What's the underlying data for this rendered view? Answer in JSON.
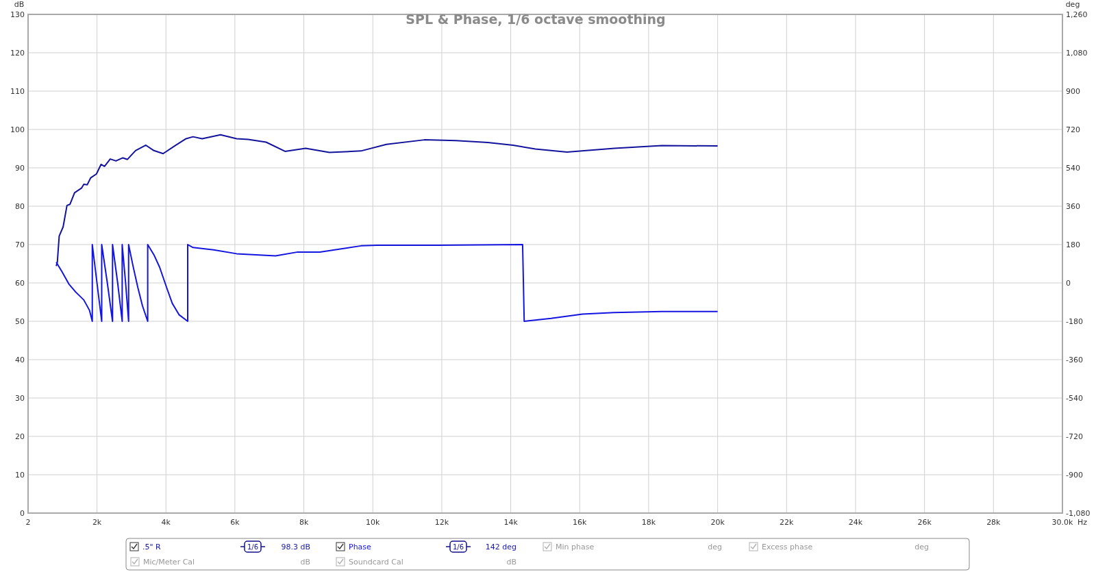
{
  "chart_data": {
    "type": "line",
    "title": "SPL & Phase, 1/6 octave smoothing",
    "xlabel": "Hz",
    "ylabel": "dB",
    "y2label": "deg",
    "xlim": [
      2,
      30000
    ],
    "xticks": [
      2,
      {
        "value": 2000,
        "label": "2k"
      },
      {
        "value": 4000,
        "label": "4k"
      },
      {
        "value": 6000,
        "label": "6k"
      },
      {
        "value": 8000,
        "label": "8k"
      },
      {
        "value": 10000,
        "label": "10k"
      },
      {
        "value": 12000,
        "label": "12k"
      },
      {
        "value": 14000,
        "label": "14k"
      },
      {
        "value": 16000,
        "label": "16k"
      },
      {
        "value": 18000,
        "label": "18k"
      },
      {
        "value": 20000,
        "label": "20k"
      },
      {
        "value": 22000,
        "label": "22k"
      },
      {
        "value": 24000,
        "label": "24k"
      },
      {
        "value": 26000,
        "label": "26k"
      },
      {
        "value": 28000,
        "label": "28k"
      },
      {
        "value": 30000,
        "label": "30.0k"
      }
    ],
    "ylim": [
      0,
      130
    ],
    "yticks": [
      0,
      10,
      20,
      30,
      40,
      50,
      60,
      70,
      80,
      90,
      100,
      110,
      120,
      130
    ],
    "y2lim": [
      -1080,
      1260
    ],
    "y2ticks": [
      {
        "value": -1080,
        "label": "-1,080"
      },
      -900,
      -720,
      -540,
      -360,
      -180,
      0,
      180,
      360,
      540,
      720,
      900,
      {
        "value": 1080,
        "label": "1,080"
      },
      {
        "value": 1260,
        "label": "1,260"
      }
    ],
    "grid": true,
    "legend": "bottom",
    "marker": "none",
    "line_style": "solid",
    "series": [
      {
        "name": ".5\" R",
        "color": "#12129c",
        "x": [
          818,
          850,
          904,
          1018,
          1130,
          1218,
          1350,
          1550,
          1618,
          1718,
          1818,
          1984,
          2118,
          2218,
          2384,
          2550,
          2750,
          2884,
          3118,
          3418,
          3650,
          3918,
          4250,
          4584,
          4784,
          5050,
          5584,
          6050,
          6384,
          6904,
          7454,
          8052,
          8740,
          9658,
          10394,
          11496,
          12414,
          13334,
          14068,
          14712,
          15630,
          17008,
          18384,
          20000
        ],
        "values": [
          64.4,
          65.4,
          72.2,
          74.6,
          80.2,
          80.5,
          83.5,
          84.7,
          85.7,
          85.6,
          87.4,
          88.4,
          90.9,
          90.4,
          92.3,
          91.8,
          92.6,
          92.2,
          94.5,
          95.9,
          94.5,
          93.7,
          95.7,
          97.6,
          98.1,
          97.6,
          98.6,
          97.6,
          97.4,
          96.7,
          94.3,
          95.1,
          94.0,
          94.4,
          96.1,
          97.3,
          97.1,
          96.6,
          95.9,
          94.9,
          94.1,
          95.1,
          95.8,
          95.7
        ]
      },
      {
        "name": "Phase",
        "color": "#1414e0",
        "axis": "y2",
        "x": [
          818,
          984,
          1184,
          1384,
          1618,
          1784,
          1864,
          1864,
          2000,
          2137,
          2137,
          2300,
          2451,
          2451,
          2600,
          2731,
          2731,
          2830,
          2917,
          2917,
          3051,
          3184,
          3318,
          3471,
          3471,
          3651,
          3818,
          4018,
          4184,
          4384,
          4631,
          4631,
          4784,
          5384,
          6050,
          7178,
          7822,
          8464,
          9658,
          10118,
          11866,
          14344,
          14390,
          15170,
          16084,
          17004,
          18384,
          20000
        ],
        "values": [
          97,
          53,
          -5,
          -43,
          -80,
          -129,
          -180,
          180,
          0,
          -180,
          180,
          0,
          -180,
          180,
          0,
          -180,
          180,
          0,
          -180,
          180,
          75,
          -21,
          -107,
          -180,
          180,
          132,
          73,
          -21,
          -96,
          -150,
          -180,
          180,
          166,
          155,
          137,
          127,
          145,
          145,
          174,
          177,
          177,
          180,
          -180,
          -166,
          -146,
          -139,
          -134,
          -134
        ]
      }
    ],
    "annotations": [
      "1/6",
      "98.3 dB",
      "1/6",
      "142 deg",
      "Min phase",
      "deg",
      "Excess phase",
      "deg",
      "Mic/Meter Cal",
      "dB",
      "Soundcard Cal",
      "dB"
    ]
  }
}
